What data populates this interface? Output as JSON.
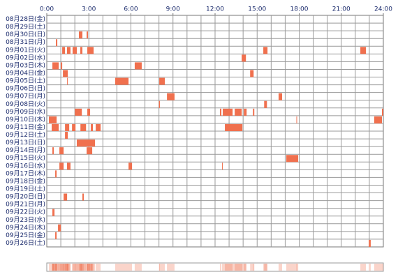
{
  "chart_data": {
    "type": "timeline",
    "categories": [
      "08月28日(金)",
      "08月29日(土)",
      "08月30日(日)",
      "08月31日(月)",
      "09月01日(火)",
      "09月02日(水)",
      "09月03日(木)",
      "09月04日(金)",
      "09月05日(土)",
      "09月06日(日)",
      "09月07日(月)",
      "09月08日(火)",
      "09月09日(水)",
      "09月10日(木)",
      "09月11日(金)",
      "09月12日(土)",
      "09月13日(日)",
      "09月14日(月)",
      "09月15日(火)",
      "09月16日(水)",
      "09月17日(木)",
      "09月18日(金)",
      "09月19日(土)",
      "09月20日(日)",
      "09月21日(月)",
      "09月22日(火)",
      "09月23日(水)",
      "09月24日(木)",
      "09月25日(金)",
      "09月26日(土)"
    ],
    "segments": [
      [],
      [],
      [
        [
          2.29,
          2.54
        ],
        [
          2.84,
          2.94
        ]
      ],
      [
        [
          0.65,
          0.75
        ]
      ],
      [
        [
          1.1,
          1.3
        ],
        [
          1.44,
          1.69
        ],
        [
          1.84,
          2.14
        ],
        [
          2.39,
          2.54
        ],
        [
          2.89,
          3.34
        ],
        [
          15.44,
          15.74
        ],
        [
          22.36,
          22.76
        ]
      ],
      [
        [
          13.9,
          14.2
        ]
      ],
      [
        [
          0.4,
          0.85
        ],
        [
          1.0,
          1.1
        ],
        [
          6.27,
          6.77
        ]
      ],
      [
        [
          1.15,
          1.5
        ],
        [
          14.5,
          14.75
        ]
      ],
      [
        [
          1.45,
          1.5
        ],
        [
          4.88,
          5.83
        ],
        [
          8.02,
          8.42
        ]
      ],
      [],
      [
        [
          8.57,
          9.11
        ],
        [
          16.53,
          16.78
        ]
      ],
      [
        [
          8.0,
          8.07
        ],
        [
          15.5,
          15.7
        ]
      ],
      [
        [
          2.0,
          2.5
        ],
        [
          2.89,
          3.09
        ],
        [
          12.35,
          12.45
        ],
        [
          12.55,
          13.25
        ],
        [
          13.4,
          13.9
        ],
        [
          14.05,
          14.25
        ],
        [
          14.7,
          14.8
        ],
        [
          23.9,
          24
        ]
      ],
      [
        [
          0.15,
          0.7
        ],
        [
          17.8,
          17.85
        ],
        [
          23.35,
          23.9
        ]
      ],
      [
        [
          0.35,
          0.85
        ],
        [
          1.3,
          1.6
        ],
        [
          1.8,
          2.05
        ],
        [
          2.4,
          2.8
        ],
        [
          3.14,
          3.29
        ],
        [
          3.49,
          3.84
        ],
        [
          12.7,
          13.95
        ]
      ],
      [
        [
          1.3,
          1.5
        ]
      ],
      [
        [
          2.14,
          3.44
        ]
      ],
      [
        [
          0.4,
          0.5
        ],
        [
          0.9,
          1.2
        ],
        [
          2.84,
          3.24
        ]
      ],
      [
        [
          17.08,
          17.93
        ]
      ],
      [
        [
          0.9,
          1.2
        ],
        [
          1.44,
          1.69
        ],
        [
          5.83,
          6.08
        ],
        [
          12.5,
          12.55
        ]
      ],
      [
        [
          0.6,
          0.7
        ]
      ],
      [],
      [],
      [
        [
          1.2,
          1.45
        ],
        [
          2.54,
          2.64
        ]
      ],
      [],
      [
        [
          0.4,
          0.55
        ]
      ],
      [],
      [
        [
          0.8,
          1.0
        ]
      ],
      [
        [
          0.6,
          0.7
        ]
      ],
      [
        [
          22.96,
          23.1
        ]
      ]
    ],
    "color": "#f0704e",
    "xlim": [
      0,
      24
    ],
    "xticks": [
      {
        "value": 0,
        "label": "0:00"
      },
      {
        "value": 3,
        "label": "3:00"
      },
      {
        "value": 6,
        "label": "6:00"
      },
      {
        "value": 9,
        "label": "9:00"
      },
      {
        "value": 12,
        "label": "12:00"
      },
      {
        "value": 15,
        "label": "15:00"
      },
      {
        "value": 18,
        "label": "18:00"
      },
      {
        "value": 21,
        "label": "21:00"
      },
      {
        "value": 24,
        "label": "24:00"
      }
    ],
    "grid": true
  }
}
